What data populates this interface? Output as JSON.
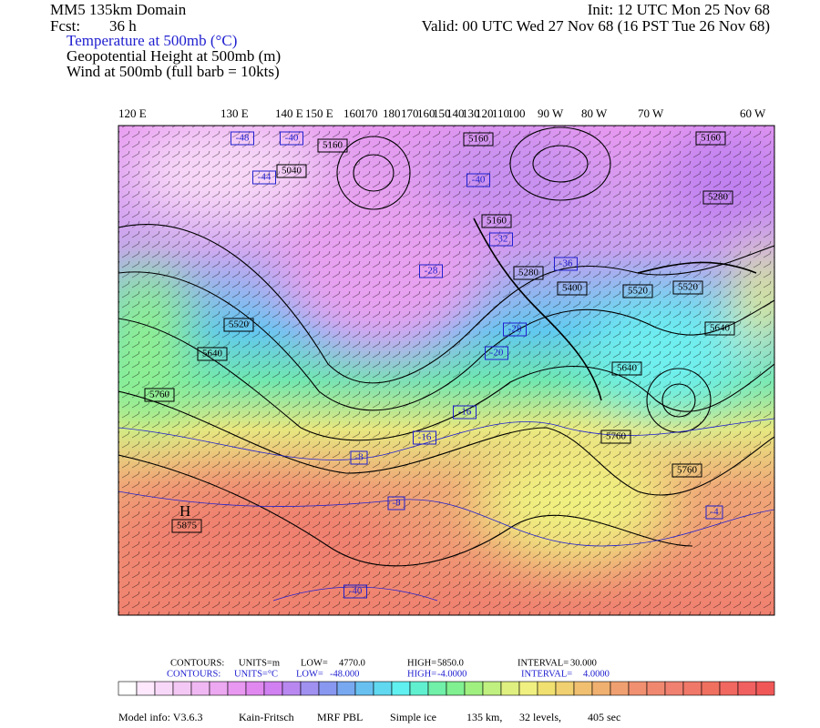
{
  "header": {
    "title": "MM5 135km Domain",
    "fcst_label": "Fcst:",
    "fcst_value": "36 h",
    "init": "Init: 12 UTC Mon 25 Nov 68",
    "valid": "Valid: 00 UTC Wed 27 Nov 68 (16 PST Tue 26 Nov 68)",
    "fields": [
      "Temperature at 500mb (°C)",
      "Geopotential Height at 500mb (m)",
      "Wind at 500mb (full barb = 10kts)"
    ]
  },
  "map": {
    "longitude_labels": [
      "120 E",
      "130 E",
      "140 E",
      "150 E",
      "160",
      "170",
      "180",
      "170",
      "160",
      "150",
      "140",
      "130",
      "120",
      "110",
      "100",
      "90 W",
      "80 W",
      "70 W",
      "60 W"
    ],
    "height_labels": [
      5160,
      5040,
      5160,
      5160,
      5160,
      5280,
      5280,
      5400,
      5520,
      5640,
      5760,
      5760,
      5760,
      5520,
      5520,
      5640,
      5640
    ],
    "high_marker": "H",
    "high_value": 5875,
    "temperature_labels": [
      -48,
      -40,
      -44,
      -40,
      -32,
      -28,
      -28,
      -20,
      -16,
      -16,
      -8,
      -8,
      -4,
      -40,
      -36
    ]
  },
  "legend": {
    "height": [
      "CONTOURS:",
      "UNITS=m",
      "LOW=",
      "4770.0",
      "HIGH=",
      "5850.0",
      "INTERVAL=",
      "30.000"
    ],
    "temperature": [
      "CONTOURS:",
      "UNITS=°C",
      "LOW=",
      "-48.000",
      "HIGH=",
      "-4.0000",
      "INTERVAL=",
      "4.0000"
    ]
  },
  "footer": [
    "Model info: V3.6.3",
    "Kain-Fritsch",
    "MRF PBL",
    "Simple ice",
    "135 km,",
    "32 levels,",
    "405 sec"
  ]
}
